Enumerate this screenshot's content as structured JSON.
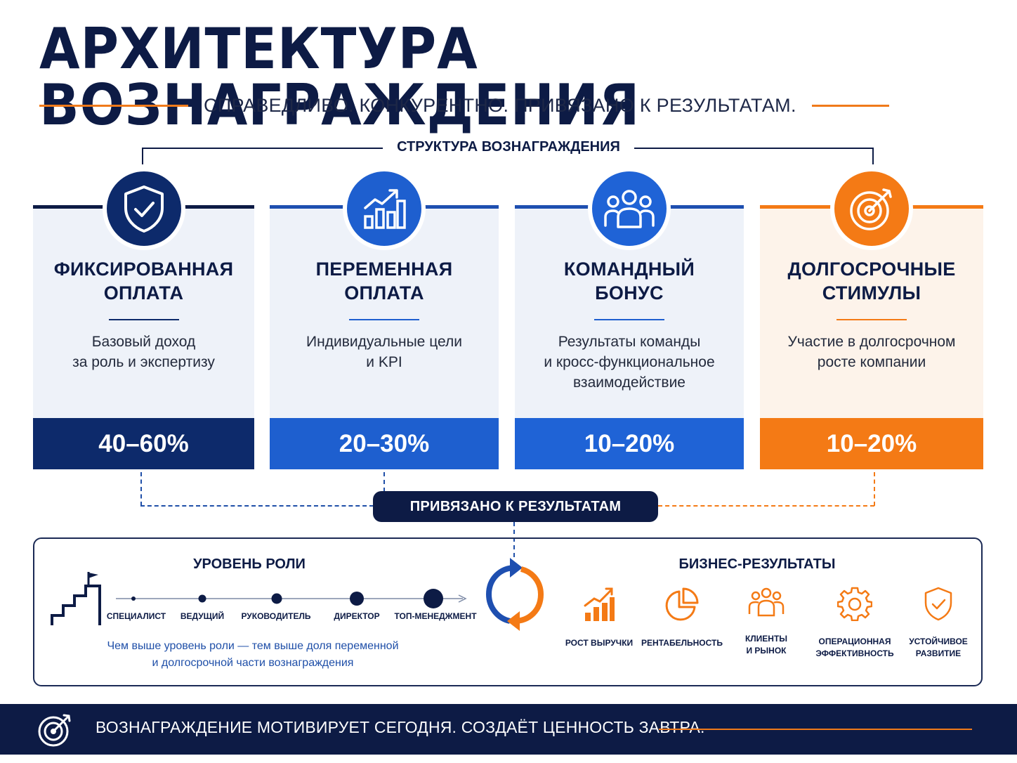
{
  "title": "АРХИТЕКТУРА ВОЗНАГРАЖДЕНИЯ",
  "subtitle": "СПРАВЕДЛИВО. КОНКУРЕНТНО. ПРИВЯЗАНО К РЕЗУЛЬТАТАМ.",
  "structure_label": "СТРУКТУРА ВОЗНАГРАЖДЕНИЯ",
  "cards": [
    {
      "title_line1": "ФИКСИРОВАННАЯ",
      "title_line2": "ОПЛАТА",
      "desc_line1": "Базовый доход",
      "desc_line2": "за роль и экспертизу",
      "desc_line3": "",
      "percent": "40–60%",
      "icon": "shield-check-icon",
      "color": "#0d2a6b"
    },
    {
      "title_line1": "ПЕРЕМЕННАЯ",
      "title_line2": "ОПЛАТА",
      "desc_line1": "Индивидуальные цели",
      "desc_line2": "и KPI",
      "desc_line3": "",
      "percent": "20–30%",
      "icon": "growth-chart-icon",
      "color": "#1e5fcf"
    },
    {
      "title_line1": "КОМАНДНЫЙ",
      "title_line2": "БОНУС",
      "desc_line1": "Результаты команды",
      "desc_line2": "и кросс-функциональное",
      "desc_line3": "взаимодействие",
      "percent": "10–20%",
      "icon": "team-icon",
      "color": "#1f63d6"
    },
    {
      "title_line1": "ДОЛГОСРОЧНЫЕ",
      "title_line2": "СТИМУЛЫ",
      "desc_line1": "Участие в долгосрочном",
      "desc_line2": "росте компании",
      "desc_line3": "",
      "percent": "10–20%",
      "icon": "target-icon",
      "color": "#f47a15"
    }
  ],
  "results_pill": "ПРИВЯЗАНО К РЕЗУЛЬТАТАМ",
  "role_level": {
    "heading": "УРОВЕНЬ РОЛИ",
    "levels": [
      "СПЕЦИАЛИСТ",
      "ВЕДУЩИЙ",
      "РУКОВОДИТЕЛЬ",
      "ДИРЕКТОР",
      "ТОП-МЕНЕДЖМЕНТ"
    ],
    "note_line1": "Чем выше уровень роли — тем выше доля переменной",
    "note_line2": "и долгосрочной части вознаграждения"
  },
  "business_results": {
    "heading": "БИЗНЕС-РЕЗУЛЬТАТЫ",
    "items": [
      {
        "line1": "РОСТ ВЫРУЧКИ",
        "line2": "",
        "icon": "revenue-growth-icon"
      },
      {
        "line1": "РЕНТАБЕЛЬНОСТЬ",
        "line2": "",
        "icon": "pie-chart-icon"
      },
      {
        "line1": "КЛИЕНТЫ",
        "line2": "И РЫНОК",
        "icon": "clients-icon"
      },
      {
        "line1": "ОПЕРАЦИОННАЯ",
        "line2": "ЭФФЕКТИВНОСТЬ",
        "icon": "gear-icon"
      },
      {
        "line1": "УСТОЙЧИВОЕ",
        "line2": "РАЗВИТИЕ",
        "icon": "shield-check-icon"
      }
    ]
  },
  "footer": "ВОЗНАГРАЖДЕНИЕ МОТИВИРУЕТ СЕГОДНЯ. СОЗДАЁТ ЦЕННОСТЬ ЗАВТРА.",
  "colors": {
    "navy": "#0d1b45",
    "blue": "#1e5fcf",
    "orange": "#f47a15"
  }
}
